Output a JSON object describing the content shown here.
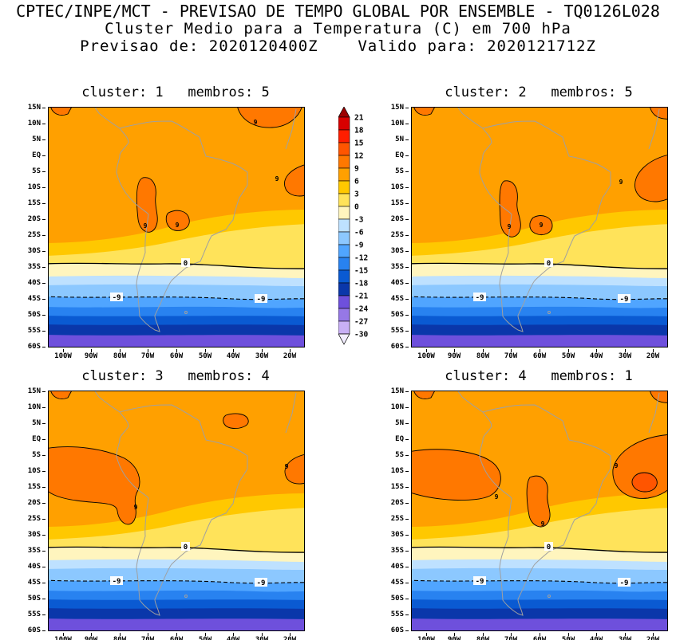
{
  "header": {
    "line1": "CPTEC/INPE/MCT - PREVISAO DE TEMPO GLOBAL POR ENSEMBLE - TQ0126L028",
    "line2": "Cluster Medio para a Temperatura (C) em 700 hPa",
    "line3": "Previsao de: 2020120400Z    Valido para: 2020121712Z"
  },
  "panels": [
    {
      "cluster": "1",
      "membros": "5",
      "title": "cluster: 1   membros: 5"
    },
    {
      "cluster": "2",
      "membros": "5",
      "title": "cluster: 2   membros: 5"
    },
    {
      "cluster": "3",
      "membros": "4",
      "title": "cluster: 3   membros: 4"
    },
    {
      "cluster": "4",
      "membros": "1",
      "title": "cluster: 4   membros: 1"
    }
  ],
  "axes": {
    "lat": [
      "15N",
      "10N",
      "5N",
      "EQ",
      "5S",
      "10S",
      "15S",
      "20S",
      "25S",
      "30S",
      "35S",
      "40S",
      "45S",
      "50S",
      "55S",
      "60S"
    ],
    "lon": [
      "100W",
      "90W",
      "80W",
      "70W",
      "60W",
      "50W",
      "40W",
      "30W",
      "20W"
    ]
  },
  "colorbar": {
    "levels": [
      21,
      18,
      15,
      12,
      9,
      6,
      3,
      0,
      -3,
      -6,
      -9,
      -12,
      -15,
      -18,
      -21,
      -24,
      -27,
      -30
    ],
    "segment_colors": [
      "#D80000",
      "#FF1E00",
      "#FF5500",
      "#FF7800",
      "#FFA000",
      "#FFC800",
      "#FFE35A",
      "#FFF5BE",
      "#BEE1FF",
      "#8CC8FF",
      "#50A5FF",
      "#2882F0",
      "#0A5AD2",
      "#0A37AA",
      "#6E50DC",
      "#9678E6",
      "#C8AFF5"
    ],
    "arrow_top_color": "#9C0000",
    "arrow_bottom_color": "#F2EDFF"
  },
  "map": {
    "label9": "9",
    "label0": "0",
    "label_neg9": "-9",
    "background_band_color": "#FFA000",
    "warm_core_color": "#FF7800",
    "coast_color": "#A0A0A0"
  },
  "chart_data": {
    "type": "heatmap",
    "title": "CPTEC/INPE/MCT - PREVISAO DE TEMPO GLOBAL POR ENSEMBLE - TQ0126L028",
    "subtitle": "Cluster Medio para a Temperatura (C) em 700 hPa",
    "forecast_init": "2020120400Z",
    "forecast_valid": "2020121712Z",
    "variable": "Temperatura (C) em 700 hPa",
    "panels": [
      {
        "cluster": 1,
        "membros": 5
      },
      {
        "cluster": 2,
        "membros": 5
      },
      {
        "cluster": 3,
        "membros": 4
      },
      {
        "cluster": 4,
        "membros": 1
      }
    ],
    "x_ticks": [
      "100W",
      "90W",
      "80W",
      "70W",
      "60W",
      "50W",
      "40W",
      "30W",
      "20W"
    ],
    "y_ticks": [
      "15N",
      "10N",
      "5N",
      "EQ",
      "5S",
      "10S",
      "15S",
      "20S",
      "25S",
      "30S",
      "35S",
      "40S",
      "45S",
      "50S",
      "55S",
      "60S"
    ],
    "colorbar_levels_c": [
      21,
      18,
      15,
      12,
      9,
      6,
      3,
      0,
      -3,
      -6,
      -9,
      -12,
      -15,
      -18,
      -21,
      -24,
      -27,
      -30
    ],
    "colorbar_colors": [
      "#9C0000",
      "#D80000",
      "#FF1E00",
      "#FF5500",
      "#FF7800",
      "#FFA000",
      "#FFC800",
      "#FFE35A",
      "#FFF5BE",
      "#BEE1FF",
      "#8CC8FF",
      "#50A5FF",
      "#2882F0",
      "#0A5AD2",
      "#0A37AA",
      "#6E50DC",
      "#9678E6",
      "#C8AFF5",
      "#F2EDFF"
    ],
    "labeled_contours_c": [
      9,
      0,
      -9
    ],
    "pattern_summary": "All four cluster means show 6-9C (orange) air over tropical South America with warmer >9C cores near 70W/10-25S and along the east coast / western Atlantic; a pale 0-3C tongue over SE Brazil; the 0C isotherm near 35S; the dashed -9C isotherm near 45S; and temperatures decreasing to below -21C (blue/purple) south of 55S."
  }
}
